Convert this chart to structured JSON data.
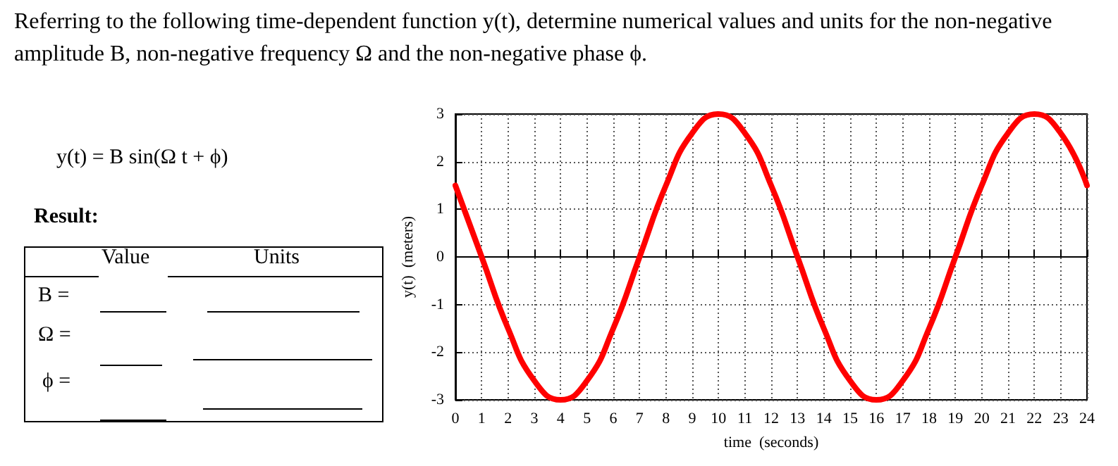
{
  "chart_data": {
    "type": "line",
    "title": "Referring to the following time-dependent function y(t), determine numerical values and units for the non-negative amplitude B, non-negative frequency Ω and the non-negative phase ϕ.",
    "annotations": [
      "y(t) = B sin(Ω t + ϕ)",
      "Result:",
      "Value",
      "Units",
      "B =",
      "Ω =",
      "ϕ ="
    ],
    "xlabel": "time  (seconds)",
    "ylabel": "y(t)  (meters)",
    "x": [
      0,
      1,
      2,
      3,
      4,
      5,
      6,
      7,
      8,
      9,
      10,
      11,
      12,
      13,
      14,
      15,
      16,
      17,
      18,
      19,
      20,
      21,
      22,
      23,
      24
    ],
    "series": [
      {
        "color": "#ff0000",
        "values": [
          1.5,
          0,
          -1.5,
          -2.6,
          -3,
          -2.6,
          -1.5,
          0,
          1.5,
          2.6,
          3,
          2.6,
          1.5,
          0,
          -1.5,
          -2.6,
          -3,
          -2.6,
          -1.5,
          0,
          1.5,
          2.6,
          3,
          2.6,
          1.5
        ]
      }
    ],
    "xlim": [
      0,
      24
    ],
    "xticks": [
      0,
      1,
      2,
      3,
      4,
      5,
      6,
      7,
      8,
      9,
      10,
      11,
      12,
      13,
      14,
      15,
      16,
      17,
      18,
      19,
      20,
      21,
      22,
      23,
      24
    ],
    "ylim": [
      -3,
      3
    ],
    "yticks": [
      -3,
      -2,
      -1,
      0,
      1,
      2,
      3
    ],
    "grid": true,
    "marker": "none",
    "line_style": "solid"
  }
}
